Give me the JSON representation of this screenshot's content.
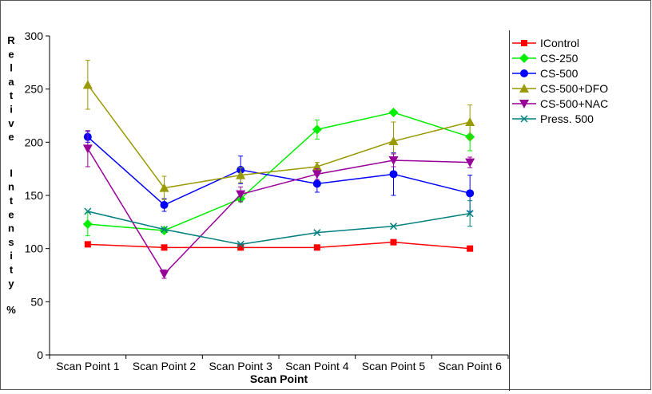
{
  "chart_data": {
    "type": "line",
    "categories": [
      "Scan Point 1",
      "Scan Point 2",
      "Scan Point 3",
      "Scan Point 4",
      "Scan Point 5",
      "Scan Point 6"
    ],
    "xlabel": "Scan Point",
    "ylabel": "Relative Intensity %",
    "ylim": [
      0,
      300
    ],
    "yticks": [
      0,
      50,
      100,
      150,
      200,
      250,
      300
    ],
    "grid": false,
    "legend_position": "right",
    "series": [
      {
        "name": "IControl",
        "color": "#ff0000",
        "marker": "square",
        "values": [
          104,
          101,
          101,
          101,
          106,
          100
        ],
        "errors": [
          0,
          0,
          0,
          0,
          0,
          0
        ]
      },
      {
        "name": "CS-250",
        "color": "#00ee00",
        "marker": "diamond",
        "values": [
          123,
          117,
          147,
          212,
          228,
          205
        ],
        "errors": [
          11,
          0,
          0,
          9,
          0,
          13
        ]
      },
      {
        "name": "CS-500",
        "color": "#0000ff",
        "marker": "circle",
        "values": [
          205,
          141,
          174,
          161,
          170,
          152
        ],
        "errors": [
          5,
          6,
          13,
          8,
          20,
          17
        ]
      },
      {
        "name": "CS-500+DFO",
        "color": "#999900",
        "marker": "triangle-up",
        "values": [
          254,
          157,
          169,
          177,
          201,
          219
        ],
        "errors": [
          23,
          11,
          7,
          4,
          18,
          16
        ]
      },
      {
        "name": "CS-500+NAC",
        "color": "#990099",
        "marker": "triangle-down",
        "values": [
          194,
          76,
          151,
          170,
          183,
          181
        ],
        "errors": [
          17,
          4,
          7,
          5,
          6,
          5
        ]
      },
      {
        "name": "Press. 500",
        "color": "#008080",
        "marker": "x",
        "values": [
          135,
          118,
          104,
          115,
          121,
          133
        ],
        "errors": [
          0,
          0,
          0,
          0,
          0,
          12
        ]
      }
    ]
  }
}
